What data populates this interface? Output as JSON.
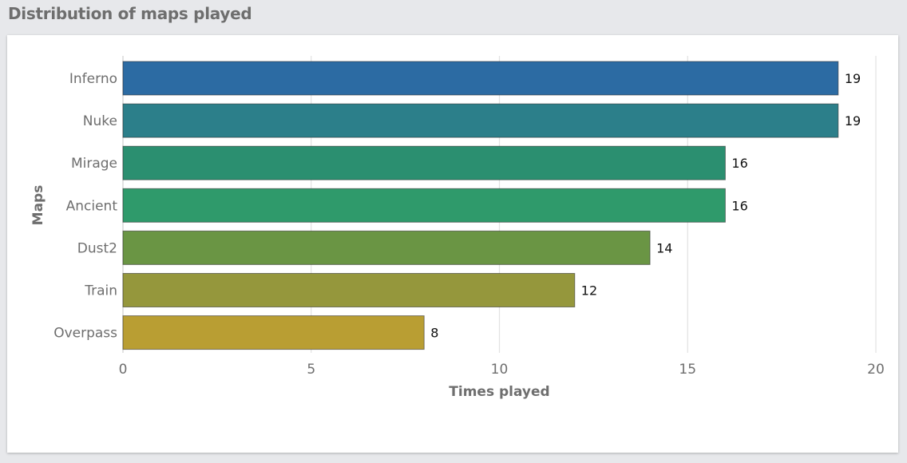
{
  "header": {
    "title": "Distribution of maps played"
  },
  "chart_data": {
    "type": "bar",
    "orientation": "horizontal",
    "categories": [
      "Inferno",
      "Nuke",
      "Mirage",
      "Ancient",
      "Dust2",
      "Train",
      "Overpass"
    ],
    "values": [
      19,
      19,
      16,
      16,
      14,
      12,
      8
    ],
    "colors": [
      "#2c6ba3",
      "#2c7f8a",
      "#2b8f70",
      "#2f9a6b",
      "#6a9544",
      "#95973c",
      "#b99e33"
    ],
    "xlabel": "Times played",
    "ylabel": "Maps",
    "xlim": [
      0,
      20
    ],
    "xticks": [
      0,
      5,
      10,
      15,
      20
    ],
    "grid": true,
    "data_labels": true
  }
}
